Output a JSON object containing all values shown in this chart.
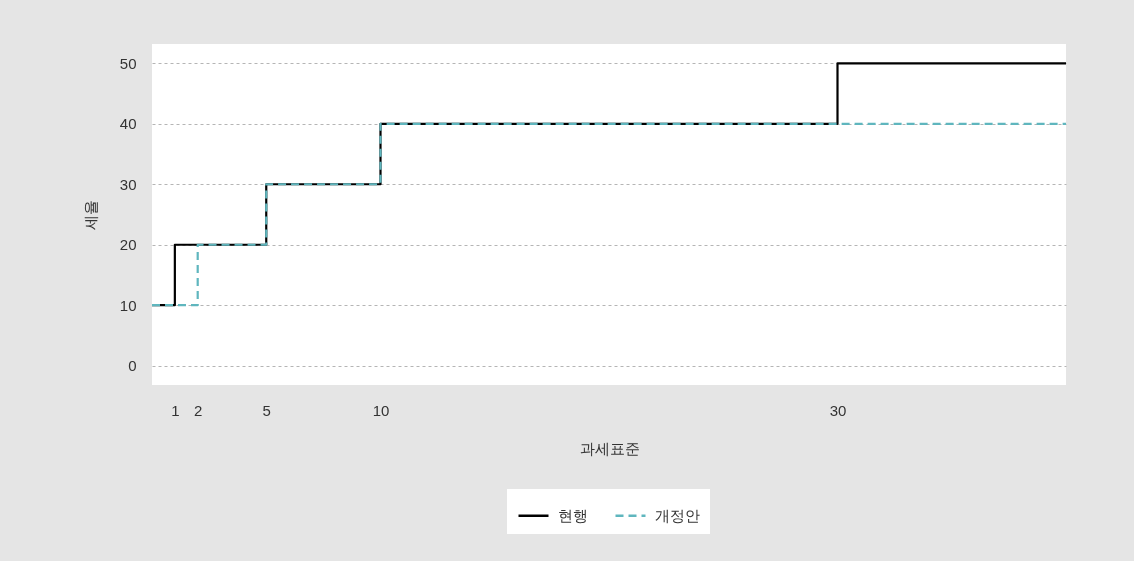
{
  "chart_data": {
    "type": "step",
    "xlabel": "과세표준",
    "ylabel": "세율",
    "xlim": [
      0,
      40
    ],
    "xticks": [
      1,
      2,
      5,
      10,
      30
    ],
    "ylim": [
      -3.2,
      53.2
    ],
    "yticks": [
      0,
      10,
      20,
      30,
      40,
      50
    ],
    "grid": "y",
    "legend": "bottom",
    "series": [
      {
        "name": "현행",
        "color": "#000000",
        "line_style": "solid",
        "x": [
          0,
          1,
          5,
          10,
          30,
          40
        ],
        "values": [
          10,
          20,
          30,
          40,
          50,
          50
        ]
      },
      {
        "name": "개정안",
        "color": "#5fb6be",
        "line_style": "dashed",
        "x": [
          0,
          2,
          5,
          10,
          40
        ],
        "values": [
          10,
          20,
          30,
          40,
          40
        ]
      }
    ]
  }
}
